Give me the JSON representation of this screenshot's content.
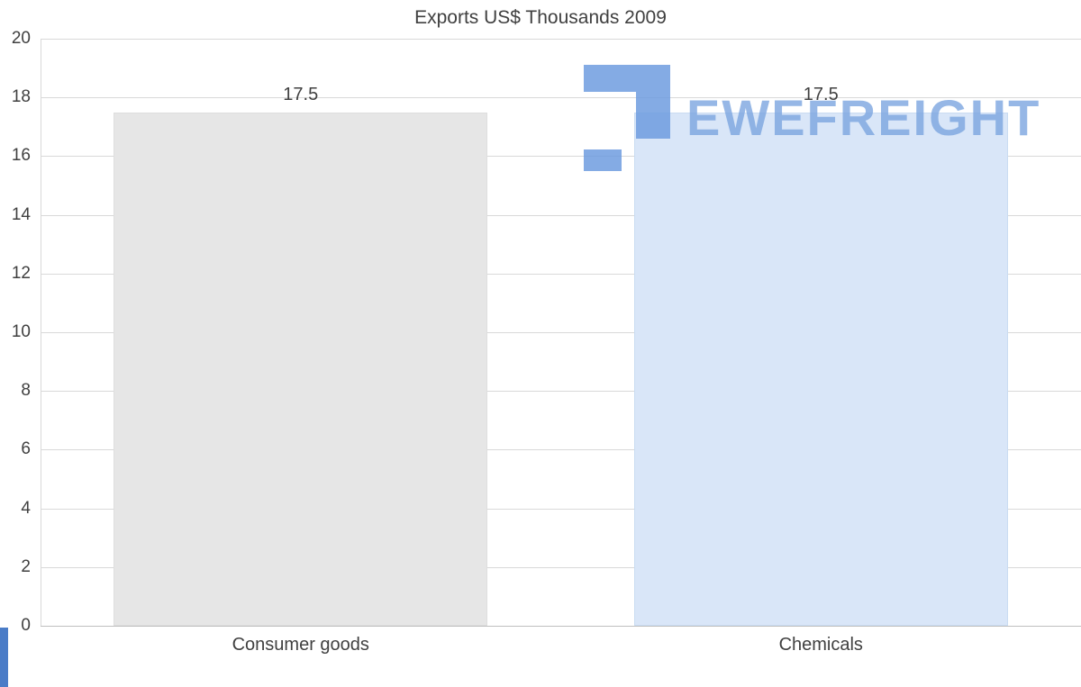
{
  "chart_data": {
    "type": "bar",
    "title": "Exports US$ Thousands 2009",
    "categories": [
      "Consumer goods",
      "Chemicals"
    ],
    "values": [
      17.5,
      17.5
    ],
    "value_labels": [
      "17.5",
      "17.5"
    ],
    "series": [
      {
        "name": "Exports US$ Thousands 2009",
        "values": [
          17.5,
          17.5
        ]
      }
    ],
    "bar_colors": [
      "#e6e6e6",
      "#d9e6f8"
    ],
    "bar_border_colors": [
      "#dedede",
      "#cadcf2"
    ],
    "xlabel": "",
    "ylabel": "",
    "ylim": [
      0,
      20
    ],
    "yticks": [
      0,
      2,
      4,
      6,
      8,
      10,
      12,
      14,
      16,
      18,
      20
    ],
    "grid": true,
    "gridline_color": "#d9d9d9",
    "axis_line_color": "#bfbfbf",
    "text_color": "#404040",
    "legend": "none"
  },
  "watermark": {
    "text": "EWEFREIGHT",
    "color": "#7ca6e0",
    "icon_color": "#6f9de0"
  },
  "decor": {
    "left_strip_color": "#4a7cc7"
  }
}
